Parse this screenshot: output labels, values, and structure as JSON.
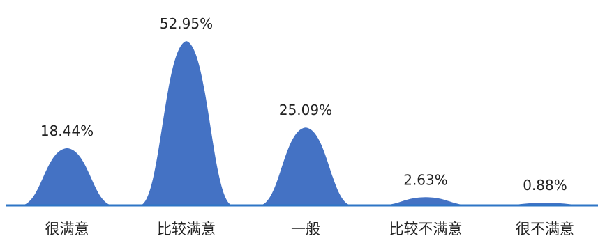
{
  "chart_data": {
    "type": "area",
    "title": "",
    "xlabel": "",
    "ylabel": "",
    "categories": [
      "很满意",
      "比较满意",
      "一般",
      "比较不满意",
      "很不满意"
    ],
    "values": [
      18.44,
      52.95,
      25.09,
      2.63,
      0.88
    ],
    "data_labels": [
      "18.44%",
      "52.95%",
      "25.09%",
      "2.63%",
      "0.88%"
    ],
    "unit": "%",
    "ylim": [
      0,
      55
    ],
    "grid": false,
    "legend": "none",
    "colors": {
      "fill": "#4472C4",
      "axis": "#2E75C6",
      "text": "#222222"
    }
  }
}
